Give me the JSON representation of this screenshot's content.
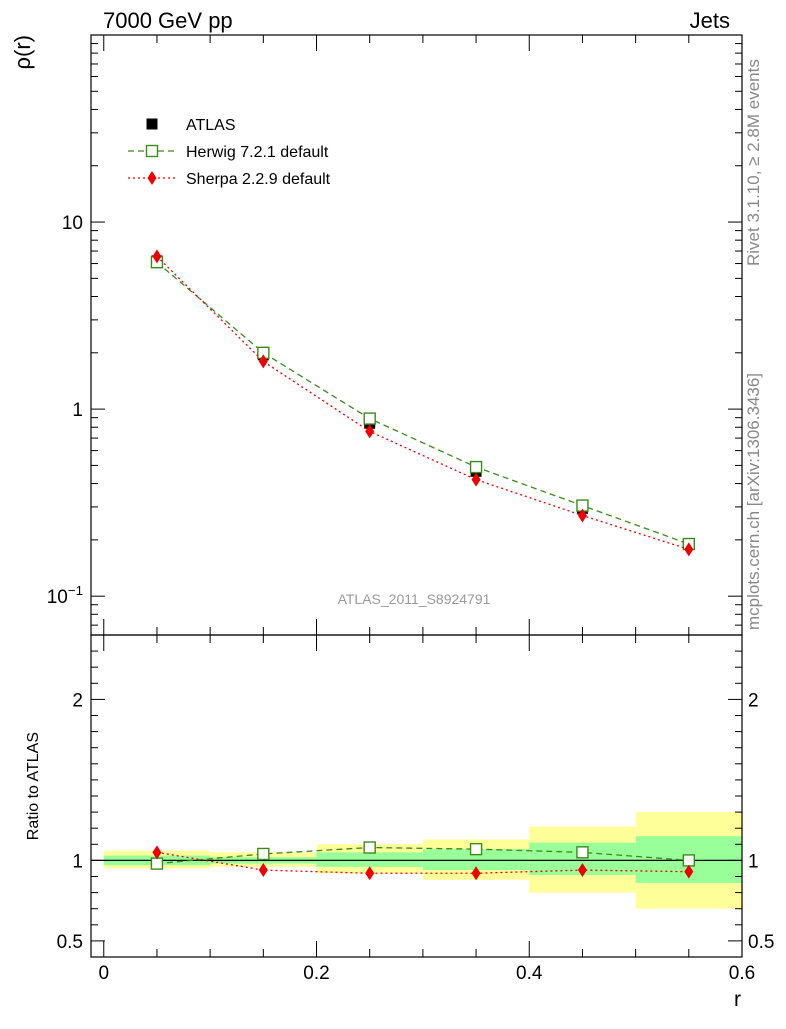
{
  "header": {
    "left": "7000 GeV pp",
    "right": "Jets"
  },
  "side_labels": {
    "rivet": "Rivet 3.1.10, ≥ 2.8M events",
    "mcplots": "mcplots.cern.ch [arXiv:1306.3436]"
  },
  "chart_data": {
    "type": "line",
    "analysis_label": "ATLAS_2011_S8924791",
    "x": [
      0.05,
      0.15,
      0.25,
      0.35,
      0.45,
      0.55
    ],
    "top": {
      "ylabel": "ρ(r)",
      "yscale": "log",
      "ylim": [
        0.062,
        100
      ],
      "yticks": [
        {
          "value": 10,
          "label": "10"
        },
        {
          "value": 1,
          "label": "1"
        },
        {
          "value": 0.1,
          "label": "10",
          "sup": "−1"
        }
      ],
      "legend_position": "top-left",
      "series": [
        {
          "name": "ATLAS",
          "values": [
            6.2,
            1.95,
            0.84,
            0.465,
            0.295,
            0.19
          ],
          "color": "#000000",
          "marker": "filled-square",
          "line": "none"
        },
        {
          "name": "Herwig 7.2.1 default",
          "values": [
            6.1,
            2.0,
            0.89,
            0.49,
            0.305,
            0.19
          ],
          "color": "#3a8a1a",
          "marker": "open-square",
          "line": "dashed"
        },
        {
          "name": "Sherpa 2.2.9 default",
          "values": [
            6.55,
            1.8,
            0.76,
            0.42,
            0.27,
            0.178
          ],
          "color": "#ee0000",
          "marker": "diamond",
          "line": "dotted"
        }
      ]
    },
    "ratio": {
      "ylabel": "Ratio to ATLAS",
      "ylim": [
        0.4,
        2.4
      ],
      "yticks": [
        {
          "value": 2,
          "label": "2"
        },
        {
          "value": 1,
          "label": "1"
        },
        {
          "value": 0.5,
          "label": "0.5"
        }
      ],
      "bands": [
        {
          "x0": 0.0,
          "x1": 0.1,
          "stat": [
            0.97,
            1.03
          ],
          "total": [
            0.95,
            1.06
          ]
        },
        {
          "x0": 0.1,
          "x1": 0.2,
          "stat": [
            0.98,
            1.02
          ],
          "total": [
            0.96,
            1.05
          ]
        },
        {
          "x0": 0.2,
          "x1": 0.3,
          "stat": [
            0.96,
            1.05
          ],
          "total": [
            0.92,
            1.1
          ]
        },
        {
          "x0": 0.3,
          "x1": 0.4,
          "stat": [
            0.94,
            1.07
          ],
          "total": [
            0.88,
            1.13
          ]
        },
        {
          "x0": 0.4,
          "x1": 0.5,
          "stat": [
            0.91,
            1.11
          ],
          "total": [
            0.8,
            1.21
          ]
        },
        {
          "x0": 0.5,
          "x1": 0.6,
          "stat": [
            0.86,
            1.15
          ],
          "total": [
            0.7,
            1.3
          ]
        }
      ],
      "series": [
        {
          "name": "Herwig 7.2.1 default",
          "values": [
            0.98,
            1.04,
            1.08,
            1.07,
            1.05,
            1.0
          ],
          "color": "#3a8a1a",
          "marker": "open-square",
          "line": "dashed"
        },
        {
          "name": "Sherpa 2.2.9 default",
          "values": [
            1.05,
            0.94,
            0.92,
            0.92,
            0.94,
            0.93
          ],
          "color": "#ee0000",
          "marker": "diamond",
          "line": "dotted"
        }
      ]
    },
    "xaxis": {
      "label": "r",
      "xlim": [
        -0.012,
        0.6
      ],
      "ticks": [
        {
          "value": 0,
          "label": "0"
        },
        {
          "value": 0.2,
          "label": "0.2"
        },
        {
          "value": 0.4,
          "label": "0.4"
        },
        {
          "value": 0.6,
          "label": "0.6"
        }
      ]
    },
    "band_colors": {
      "stat": "#99ff99",
      "total": "#ffff99"
    }
  }
}
